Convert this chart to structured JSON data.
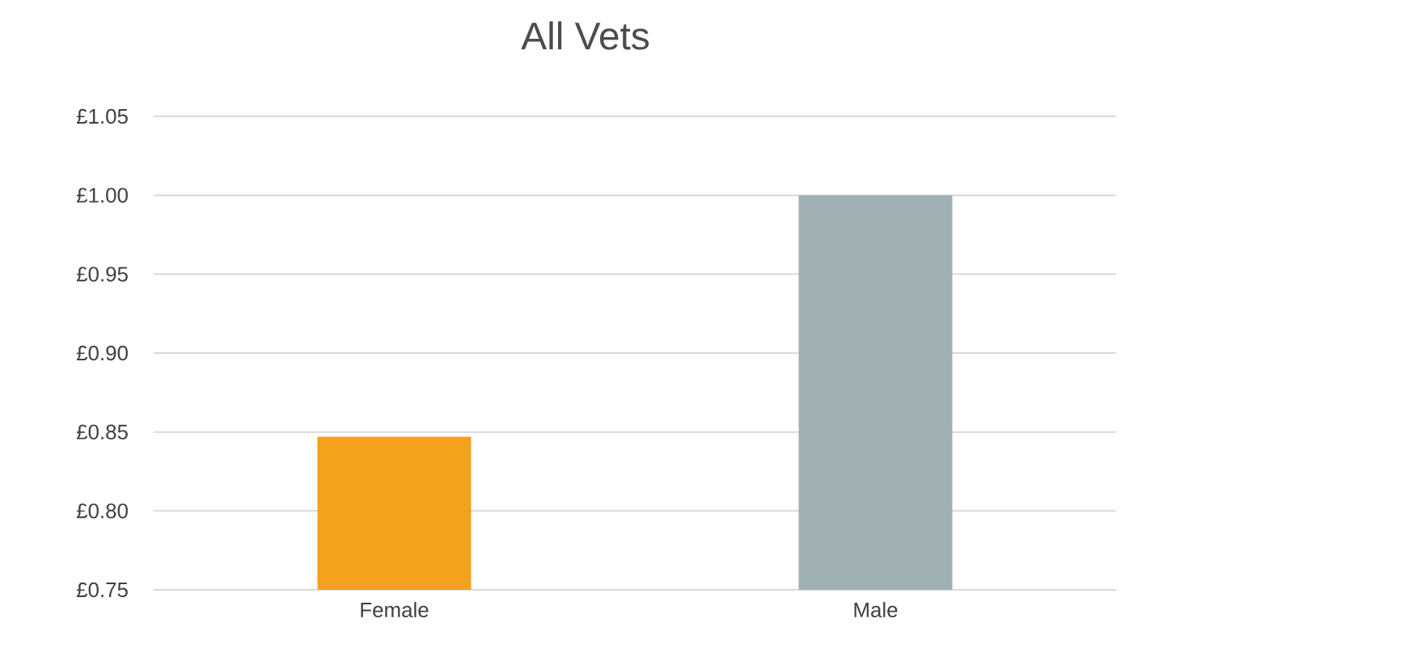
{
  "chart_data": {
    "type": "bar",
    "title": "All Vets",
    "categories": [
      "Female",
      "Male"
    ],
    "values": [
      0.847,
      1.0
    ],
    "colors": [
      "#f4a21e",
      "#9eb0b4"
    ],
    "ylim": [
      0.75,
      1.05
    ],
    "yticks": [
      {
        "value": 0.75,
        "label": "£0.75"
      },
      {
        "value": 0.8,
        "label": "£0.80"
      },
      {
        "value": 0.85,
        "label": "£0.85"
      },
      {
        "value": 0.9,
        "label": "£0.90"
      },
      {
        "value": 0.95,
        "label": "£0.95"
      },
      {
        "value": 1.0,
        "label": "£1.00"
      },
      {
        "value": 1.05,
        "label": "£1.05"
      }
    ],
    "grid": "y"
  }
}
